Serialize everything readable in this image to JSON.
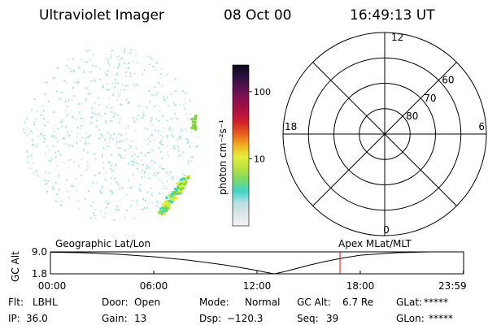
{
  "header": {
    "instrument": "Ultraviolet Imager",
    "date": "08 Oct 00",
    "time": "16:49:13 UT"
  },
  "colorbar": {
    "label": "photon cm⁻²s⁻¹",
    "ticks": [
      {
        "label": "100",
        "value": 100
      },
      {
        "label": "10",
        "value": 10
      }
    ],
    "stops": [
      "#f2f2f2",
      "#dde6ea",
      "#b8e0e4",
      "#40d6c8",
      "#7ad86a",
      "#b8e040",
      "#e6ee3c",
      "#f0b020",
      "#e86020",
      "#d41f2a",
      "#b01040",
      "#8a1050",
      "#5a1050",
      "#2a1040",
      "#0a0a1a"
    ]
  },
  "polar_grid": {
    "mlt_labels": [
      {
        "label": "12",
        "mlt": 12
      },
      {
        "label": "18",
        "mlt": 18
      },
      {
        "label": "6",
        "mlt": 6
      },
      {
        "label": "0",
        "mlt": 0
      }
    ],
    "lat_labels": [
      {
        "label": "60",
        "lat": 60
      },
      {
        "label": "70",
        "lat": 70
      },
      {
        "label": "80",
        "lat": 80
      }
    ],
    "lat_circles": [
      50,
      60,
      70,
      80
    ]
  },
  "orbit_panel": {
    "ylabel": "GC Alt",
    "left_title": "Geographic Lat/Lon",
    "right_title": "Apex MLat/MLT",
    "y_ticks": [
      {
        "label": "9.0",
        "value": 9.0
      },
      {
        "label": "1.8",
        "value": 1.8
      }
    ],
    "x_ticks": [
      {
        "label": "00:00",
        "hours": 0
      },
      {
        "label": "06:00",
        "hours": 6
      },
      {
        "label": "12:00",
        "hours": 12
      },
      {
        "label": "18:00",
        "hours": 18
      },
      {
        "label": "23:59",
        "hours": 23.983
      }
    ],
    "current_time_hours": 16.82,
    "marker_color": "#d01010"
  },
  "chart_data": {
    "type": "line",
    "xlabel": "",
    "ylabel": "GC Alt",
    "xlim": [
      0,
      24
    ],
    "ylim": [
      1.8,
      9.0
    ],
    "series": [
      {
        "values_x": [
          0,
          2,
          4,
          6,
          8,
          10,
          11,
          12,
          12.5,
          13,
          13.5,
          14,
          15,
          16,
          17,
          18,
          20,
          22,
          23.983
        ],
        "values_y": [
          8.9,
          8.7,
          8.2,
          7.4,
          6.3,
          4.8,
          3.9,
          2.9,
          2.3,
          1.8,
          2.4,
          3.1,
          4.6,
          5.9,
          7.0,
          7.9,
          8.7,
          9.0,
          9.0
        ]
      }
    ]
  },
  "status": {
    "row1": [
      {
        "label": "Flt:",
        "value": "LBHL"
      },
      {
        "label": "Door:",
        "value": "Open"
      },
      {
        "label": "Mode:",
        "value": "Normal"
      },
      {
        "label": "GC Alt:",
        "value": "6.7 Re"
      },
      {
        "label": "GLat:",
        "value": "*****"
      }
    ],
    "row2": [
      {
        "label": "IP:",
        "value": "36.0"
      },
      {
        "label": "Gain:",
        "value": "13"
      },
      {
        "label": "Dsp:",
        "value": "−120.3"
      },
      {
        "label": "Seq:",
        "value": "39"
      },
      {
        "label": "GLon:",
        "value": "*****"
      }
    ]
  },
  "colors": {
    "image_noise": "#9ee6e6",
    "auroral_green": "#7ad832",
    "auroral_yellow": "#e6ee3c"
  }
}
